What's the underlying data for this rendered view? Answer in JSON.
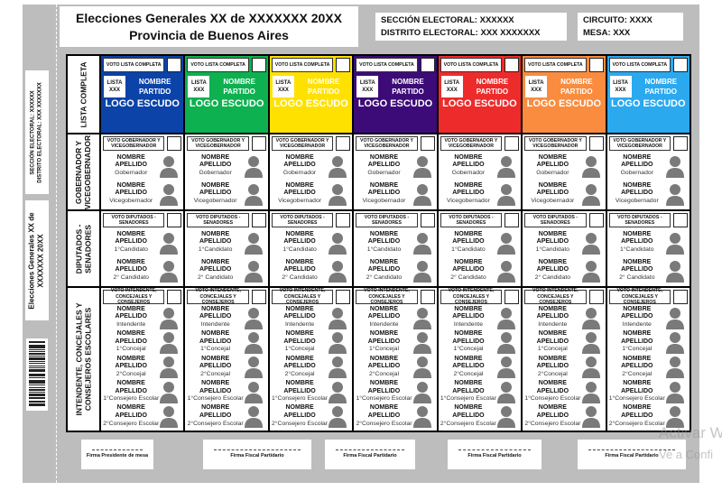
{
  "header": {
    "title_line1": "Elecciones Generales XX de XXXXXXX 20XX",
    "title_line2": "Provincia de Buenos Aires",
    "seccion": "SECCIÓN ELECTORAL: XXXXXX",
    "distrito": "DISTRITO ELECTORAL: XXX XXXXXXX",
    "circuito": "CIRCUITO:  XXXX",
    "mesa": "MESA: XXX"
  },
  "stub": {
    "seccion": "SECCIÓN ELECTORAL: XXXXXX",
    "distrito": "DISTRITO ELECTORAL: XXX XXXXXXX",
    "title_line1": "Elecciones Generales XX de",
    "title_line2": "XXXXXXX 20XX"
  },
  "row_labels": {
    "lista": "LISTA COMPLETA",
    "gob_line1": "GOBERNADOR Y",
    "gob_line2": "VICEGOBERNADOR",
    "dip_line1": "DIPUTADOS -",
    "dip_line2": "SENADORES",
    "int_line1": "INTENDENTE, CONCEJALES Y",
    "int_line2": "CONSEJEROS ESCOLARES"
  },
  "party_template": {
    "vote_label": "VOTO LISTA COMPLETA",
    "lista": "LISTA XXX",
    "name": "NOMBRE PARTIDO",
    "logo": "LOGO ESCUDO"
  },
  "parties": [
    {
      "color": "#0b43a8"
    },
    {
      "color": "#0db14f"
    },
    {
      "color": "#ffe100"
    },
    {
      "color": "#3c0b78"
    },
    {
      "color": "#ee2b2b"
    },
    {
      "color": "#f98c3e"
    },
    {
      "color": "#2aa9ef"
    }
  ],
  "sections": [
    {
      "vote_label": "VOTO GOBERNADOR Y VICEGOBERNADOR",
      "roles": [
        "Gobernador",
        "Vicegobernador"
      ]
    },
    {
      "vote_label": "VOTO DIPUTADOS - SENADORES",
      "roles": [
        "1°Candidato",
        "2° Candidato"
      ]
    },
    {
      "vote_label": "VOTO INTENDENTE, CONCEJALES Y CONSEJEROS",
      "roles": [
        "Intendente",
        "1°Concejal",
        "2°Concejal",
        "1°Consejero Escolar",
        "2°Consejero Escolar"
      ]
    }
  ],
  "candidate": {
    "first": "NOMBRE",
    "last": "APELLIDO"
  },
  "signatures": [
    "Firma Presidente de mesa",
    "Firma Fiscal Partidario",
    "Firma Fiscal Partidario",
    "Firma Fiscal Partidario",
    "Firma Fiscal Partidario"
  ],
  "watermark": {
    "line1": "Activar W",
    "line2": "Ve a Confi"
  }
}
